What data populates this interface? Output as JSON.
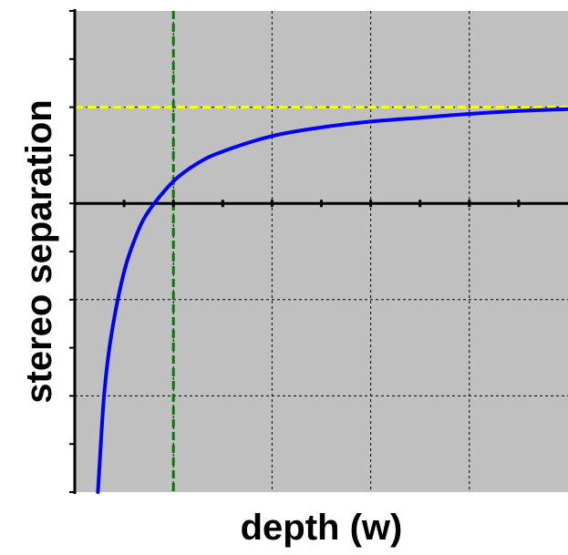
{
  "chart_data": {
    "type": "line",
    "title": "",
    "xlabel": "depth (w)",
    "ylabel": "stereo separation",
    "xlim": [
      0,
      10
    ],
    "ylim": [
      -3,
      2
    ],
    "grid": true,
    "x_grid_values": [
      2,
      4,
      6,
      8
    ],
    "y_grid_values": [
      -2,
      -1,
      1
    ],
    "x_minor_ticks": [
      1,
      2,
      3,
      4,
      5,
      6,
      7,
      8,
      9
    ],
    "y_minor_ticks": [
      -2.5,
      -2,
      -1.5,
      -1,
      -0.5,
      0.5,
      1,
      1.5
    ],
    "series": [
      {
        "x": [
          0.47,
          0.5,
          0.6,
          0.75,
          1.0,
          1.25,
          1.5,
          2.0,
          2.5,
          3.0,
          4.0,
          5.0,
          6.0,
          7.0,
          8.0,
          9.0,
          10.0
        ],
        "y": [
          -3.0,
          -2.75,
          -1.96,
          -1.34,
          -0.71,
          -0.33,
          -0.08,
          0.23,
          0.42,
          0.54,
          0.7,
          0.79,
          0.85,
          0.89,
          0.93,
          0.96,
          0.98
        ]
      }
    ],
    "reference_lines": [
      {
        "orientation": "horizontal",
        "y": 1,
        "color": "#ffff00",
        "style": "dashed"
      },
      {
        "orientation": "vertical",
        "x": 2,
        "color": "#008000",
        "style": "dashed"
      },
      {
        "orientation": "horizontal",
        "y": 0,
        "color": "#000000",
        "style": "solid"
      }
    ],
    "colors": {
      "plot_background": "#c0c0c0",
      "curve": "#0000ff",
      "grid": "#000000",
      "axis": "#000000"
    }
  }
}
